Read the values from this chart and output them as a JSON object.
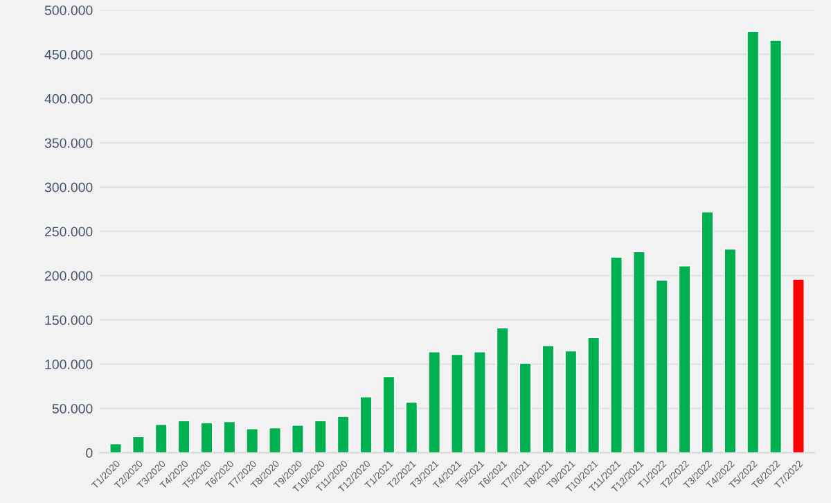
{
  "chart_data": {
    "type": "bar",
    "categories": [
      "T1/2020",
      "T2/2020",
      "T3/2020",
      "T4/2020",
      "T5/2020",
      "T6/2020",
      "T7/2020",
      "T8/2020",
      "T9/2020",
      "T10/2020",
      "T11/2020",
      "T12/2020",
      "T1/2021",
      "T2/2021",
      "T3/2021",
      "T4/2021",
      "T5/2021",
      "T6/2021",
      "T7/2021",
      "T8/2021",
      "T9/2021",
      "T10/2021",
      "T11/2021",
      "T12/2021",
      "T1/2022",
      "T2/2022",
      "T3/2022",
      "T4/2022",
      "T5/2022",
      "T6/2022",
      "T7/2022"
    ],
    "values": [
      10000,
      18000,
      32000,
      36000,
      34000,
      35000,
      27000,
      28000,
      31000,
      36000,
      41000,
      63000,
      86000,
      57000,
      114000,
      111000,
      114000,
      141000,
      101000,
      121000,
      115000,
      130000,
      221000,
      227000,
      195000,
      211000,
      272000,
      230000,
      476000,
      466000,
      196000
    ],
    "colors": [
      "#00b050",
      "#00b050",
      "#00b050",
      "#00b050",
      "#00b050",
      "#00b050",
      "#00b050",
      "#00b050",
      "#00b050",
      "#00b050",
      "#00b050",
      "#00b050",
      "#00b050",
      "#00b050",
      "#00b050",
      "#00b050",
      "#00b050",
      "#00b050",
      "#00b050",
      "#00b050",
      "#00b050",
      "#00b050",
      "#00b050",
      "#00b050",
      "#00b050",
      "#00b050",
      "#00b050",
      "#00b050",
      "#00b050",
      "#00b050",
      "#ff0000"
    ],
    "ylim": [
      0,
      500000
    ],
    "yticks": [
      0,
      {
        "value": 50000,
        "label": "50.000"
      },
      {
        "value": 100000,
        "label": "100.000"
      },
      {
        "value": 150000,
        "label": "150.000"
      },
      {
        "value": 200000,
        "label": "200.000"
      },
      {
        "value": 250000,
        "label": "250.000"
      },
      {
        "value": 300000,
        "label": "300.000"
      },
      {
        "value": 350000,
        "label": "350.000"
      },
      {
        "value": 400000,
        "label": "400.000"
      },
      {
        "value": 450000,
        "label": "450.000"
      },
      {
        "value": 500000,
        "label": "500.000"
      }
    ],
    "grid": "y",
    "legend": false
  }
}
